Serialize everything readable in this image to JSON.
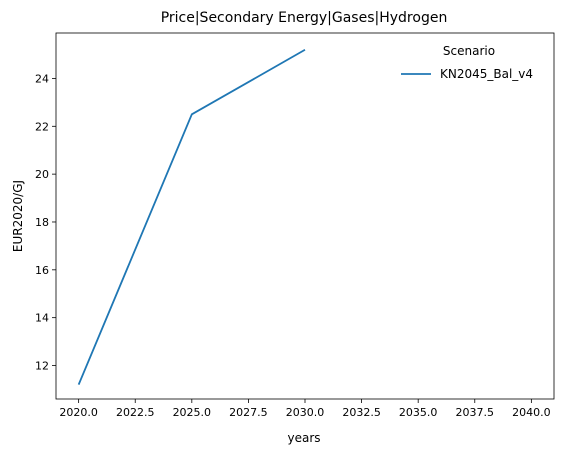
{
  "chart_data": {
    "type": "line",
    "title": "Price|Secondary Energy|Gases|Hydrogen",
    "xlabel": "years",
    "ylabel": "EUR2020/GJ",
    "xlim": [
      2019.0,
      2041.0
    ],
    "ylim": [
      10.6,
      25.9
    ],
    "xticks": [
      2020.0,
      2022.5,
      2025.0,
      2027.5,
      2030.0,
      2032.5,
      2035.0,
      2037.5,
      2040.0
    ],
    "xtick_labels": [
      "2020.0",
      "2022.5",
      "2025.0",
      "2027.5",
      "2030.0",
      "2032.5",
      "2035.0",
      "2037.5",
      "2040.0"
    ],
    "yticks": [
      12,
      14,
      16,
      18,
      20,
      22,
      24
    ],
    "ytick_labels": [
      "12",
      "14",
      "16",
      "18",
      "20",
      "22",
      "24"
    ],
    "grid": false,
    "legend": {
      "title": "Scenario",
      "placement": "top-right"
    },
    "series": [
      {
        "name": "KN2045_Bal_v4",
        "color": "#1f77b4",
        "x": [
          2020,
          2025,
          2030
        ],
        "y": [
          11.2,
          22.5,
          25.2
        ]
      }
    ]
  }
}
